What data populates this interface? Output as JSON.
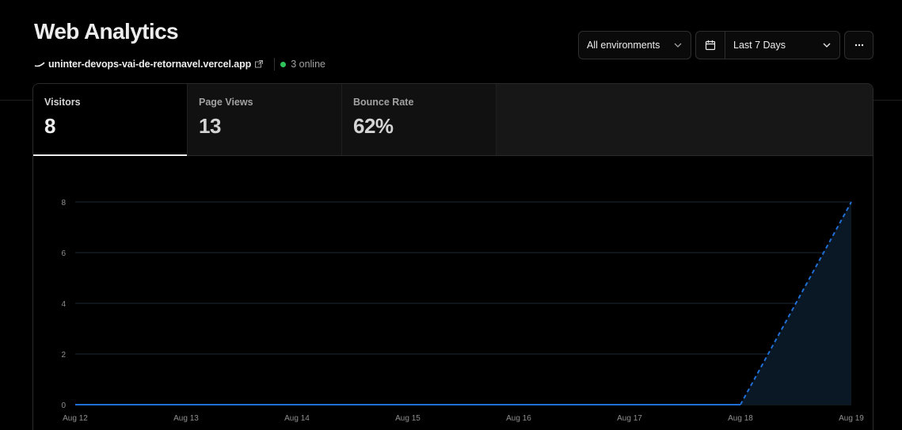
{
  "header": {
    "title": "Web Analytics",
    "domain": "uninter-devops-vai-de-retornavel.vercel.app",
    "online": "3 online",
    "status_color": "#2fc45b"
  },
  "controls": {
    "environment": "All environments",
    "date_range": "Last 7 Days",
    "more_label": "…"
  },
  "metrics": [
    {
      "label": "Visitors",
      "value": "8"
    },
    {
      "label": "Page Views",
      "value": "13"
    },
    {
      "label": "Bounce Rate",
      "value": "62%"
    }
  ],
  "chart_data": {
    "type": "area",
    "categories": [
      "Aug 12",
      "Aug 13",
      "Aug 14",
      "Aug 15",
      "Aug 16",
      "Aug 17",
      "Aug 18",
      "Aug 19"
    ],
    "series": [
      {
        "values": [
          0,
          0,
          0,
          0,
          0,
          0,
          0,
          8
        ]
      }
    ],
    "yticks": [
      0,
      2,
      4,
      6,
      8
    ],
    "ylim": [
      0,
      8
    ],
    "grid": true,
    "dashed_last_segment": true,
    "line_color": "#1f6fd6",
    "fill_color": "#0a1724"
  }
}
